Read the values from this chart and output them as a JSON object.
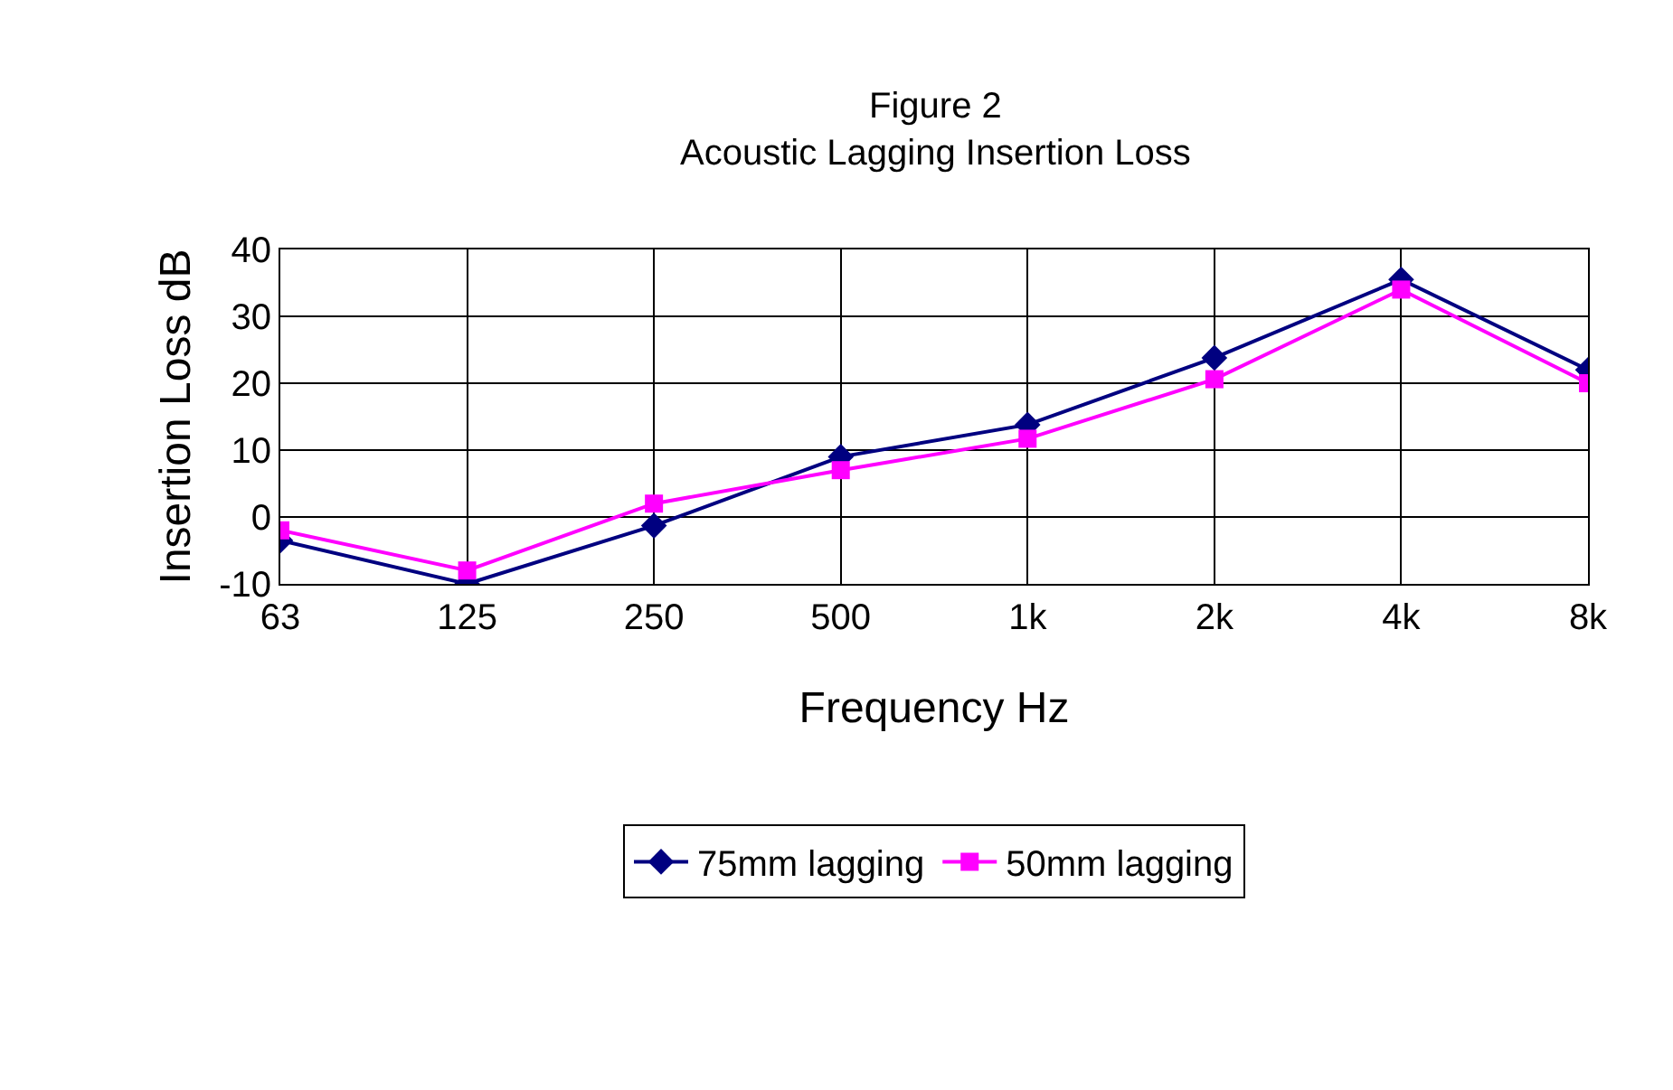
{
  "chart_data": {
    "type": "line",
    "title": "Figure 2",
    "subtitle": "Acoustic Lagging Insertion Loss",
    "xlabel": "Frequency Hz",
    "ylabel": "Insertion Loss dB",
    "categories": [
      "63",
      "125",
      "250",
      "500",
      "1k",
      "2k",
      "4k",
      "8k"
    ],
    "series": [
      {
        "name": "75mm lagging",
        "color": "#000080",
        "marker": "diamond",
        "values": [
          -3.5,
          -10,
          -1.3,
          9,
          13.8,
          23.8,
          35.5,
          22
        ]
      },
      {
        "name": "50mm lagging",
        "color": "#ff00ff",
        "marker": "square",
        "values": [
          -2,
          -8,
          2,
          7,
          11.7,
          20.6,
          34,
          20
        ]
      }
    ],
    "ylim": [
      -10,
      40
    ],
    "yticks": [
      -10,
      0,
      10,
      20,
      30,
      40
    ],
    "grid": true,
    "legend": "bottom",
    "line_style": "solid"
  }
}
